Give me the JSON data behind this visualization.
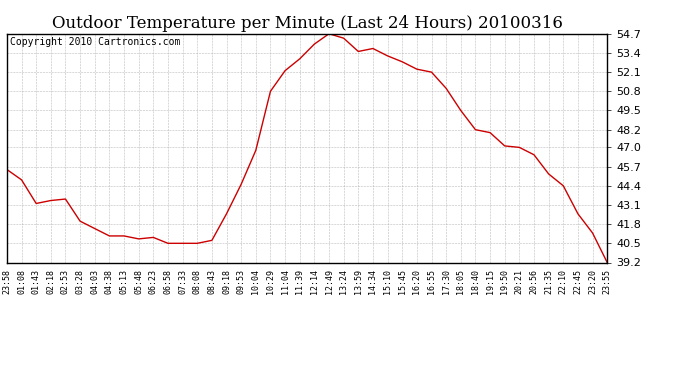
{
  "title": "Outdoor Temperature per Minute (Last 24 Hours) 20100316",
  "copyright": "Copyright 2010 Cartronics.com",
  "line_color": "#cc0000",
  "background_color": "#ffffff",
  "grid_color": "#aaaaaa",
  "border_color": "#000000",
  "ylim": [
    39.2,
    54.7
  ],
  "yticks": [
    39.2,
    40.5,
    41.8,
    43.1,
    44.4,
    45.7,
    47.0,
    48.2,
    49.5,
    50.8,
    52.1,
    53.4,
    54.7
  ],
  "x_labels": [
    "23:58",
    "01:08",
    "01:43",
    "02:18",
    "02:53",
    "03:28",
    "04:03",
    "04:38",
    "05:13",
    "05:48",
    "06:23",
    "06:58",
    "07:33",
    "08:08",
    "08:43",
    "09:18",
    "09:53",
    "10:04",
    "10:29",
    "11:04",
    "11:39",
    "12:14",
    "12:49",
    "13:24",
    "13:59",
    "14:34",
    "15:10",
    "15:45",
    "16:20",
    "16:55",
    "17:30",
    "18:05",
    "18:40",
    "19:15",
    "19:50",
    "20:21",
    "20:56",
    "21:35",
    "22:10",
    "22:45",
    "23:20",
    "23:55"
  ],
  "curve_x": [
    0,
    1,
    2,
    3,
    4,
    5,
    6,
    7,
    8,
    9,
    10,
    11,
    12,
    13,
    14,
    15,
    16,
    17,
    18,
    19,
    20,
    21,
    22,
    23,
    24,
    25,
    26,
    27,
    28,
    29,
    30,
    31,
    32,
    33,
    34,
    35,
    36,
    37,
    38,
    39,
    40,
    41
  ],
  "curve_y": [
    45.5,
    44.8,
    43.2,
    43.4,
    43.5,
    42.0,
    41.5,
    41.0,
    41.0,
    40.8,
    40.9,
    40.5,
    40.5,
    40.5,
    40.7,
    42.5,
    44.5,
    46.8,
    50.8,
    52.2,
    53.0,
    54.0,
    54.7,
    54.4,
    53.5,
    53.7,
    53.2,
    52.8,
    52.3,
    52.1,
    51.0,
    49.5,
    48.2,
    48.0,
    47.1,
    47.0,
    46.5,
    45.2,
    44.4,
    42.5,
    41.2,
    39.2
  ],
  "title_fontsize": 12,
  "copyright_fontsize": 7,
  "ytick_fontsize": 8,
  "xtick_fontsize": 6
}
